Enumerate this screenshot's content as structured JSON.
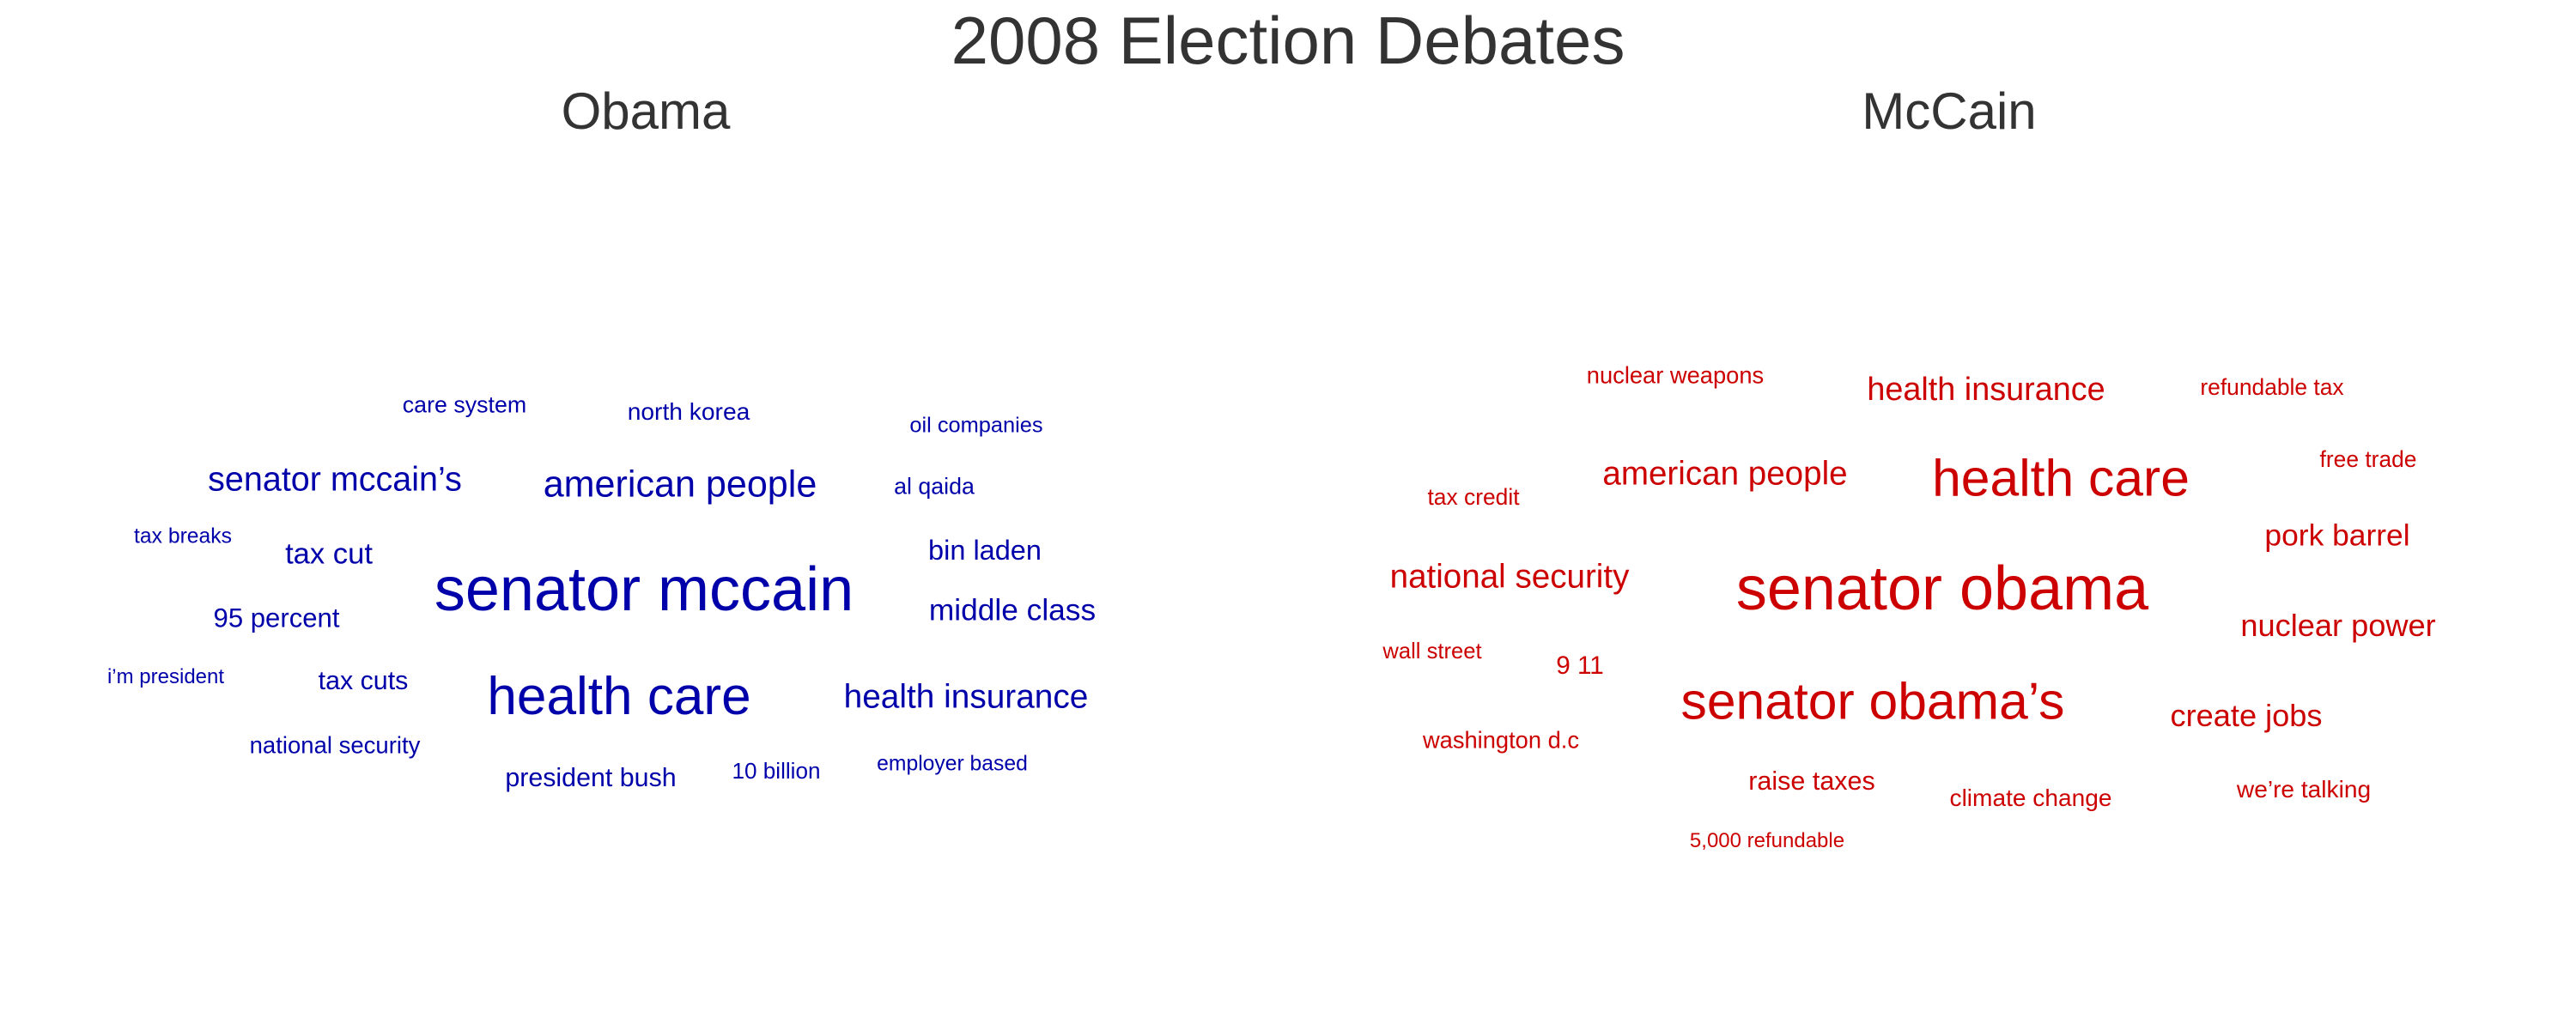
{
  "title": "2008 Election Debates",
  "colors": {
    "obama": "#0000AA",
    "mccain": "#CC0000",
    "title": "#333333",
    "background": "#FFFFFF"
  },
  "chart_data": [
    {
      "type": "wordcloud",
      "title": "Obama",
      "color": "#0000AA",
      "words": [
        {
          "text": "senator mccain",
          "weight": 10
        },
        {
          "text": "health care",
          "weight": 8.6
        },
        {
          "text": "american people",
          "weight": 5.9
        },
        {
          "text": "senator mccain’s",
          "weight": 5.4
        },
        {
          "text": "health insurance",
          "weight": 5.3
        },
        {
          "text": "middle class",
          "weight": 4.8
        },
        {
          "text": "tax cut",
          "weight": 4.7
        },
        {
          "text": "bin laden",
          "weight": 4.4
        },
        {
          "text": "95 percent",
          "weight": 4.2
        },
        {
          "text": "president bush",
          "weight": 4.1
        },
        {
          "text": "tax cuts",
          "weight": 4.1
        },
        {
          "text": "north korea",
          "weight": 3.8
        },
        {
          "text": "national security",
          "weight": 3.7
        },
        {
          "text": "care system",
          "weight": 3.6
        },
        {
          "text": "al qaida",
          "weight": 3.6
        },
        {
          "text": "10 billion",
          "weight": 3.5
        },
        {
          "text": "oil companies",
          "weight": 3.4
        },
        {
          "text": "employer based",
          "weight": 3.3
        },
        {
          "text": "tax breaks",
          "weight": 3.3
        },
        {
          "text": "i’m president",
          "weight": 3.2
        }
      ]
    },
    {
      "type": "wordcloud",
      "title": "McCain",
      "color": "#CC0000",
      "words": [
        {
          "text": "senator obama",
          "weight": 10
        },
        {
          "text": "senator obama’s",
          "weight": 8.6
        },
        {
          "text": "health care",
          "weight": 8.6
        },
        {
          "text": "american people",
          "weight": 5.9
        },
        {
          "text": "national security",
          "weight": 5.9
        },
        {
          "text": "health insurance",
          "weight": 5.8
        },
        {
          "text": "nuclear power",
          "weight": 5.6
        },
        {
          "text": "create jobs",
          "weight": 5.6
        },
        {
          "text": "pork barrel",
          "weight": 5.5
        },
        {
          "text": "raise taxes",
          "weight": 4.9
        },
        {
          "text": "9 11",
          "weight": 4.8
        },
        {
          "text": "climate change",
          "weight": 4.6
        },
        {
          "text": "we’re talking",
          "weight": 4.6
        },
        {
          "text": "nuclear weapons",
          "weight": 4.5
        },
        {
          "text": "washington d.c",
          "weight": 4.5
        },
        {
          "text": "tax credit",
          "weight": 4.4
        },
        {
          "text": "refundable tax",
          "weight": 4.4
        },
        {
          "text": "free trade",
          "weight": 4.4
        },
        {
          "text": "wall street",
          "weight": 4.3
        },
        {
          "text": "5,000 refundable",
          "weight": 4.1
        }
      ]
    }
  ]
}
